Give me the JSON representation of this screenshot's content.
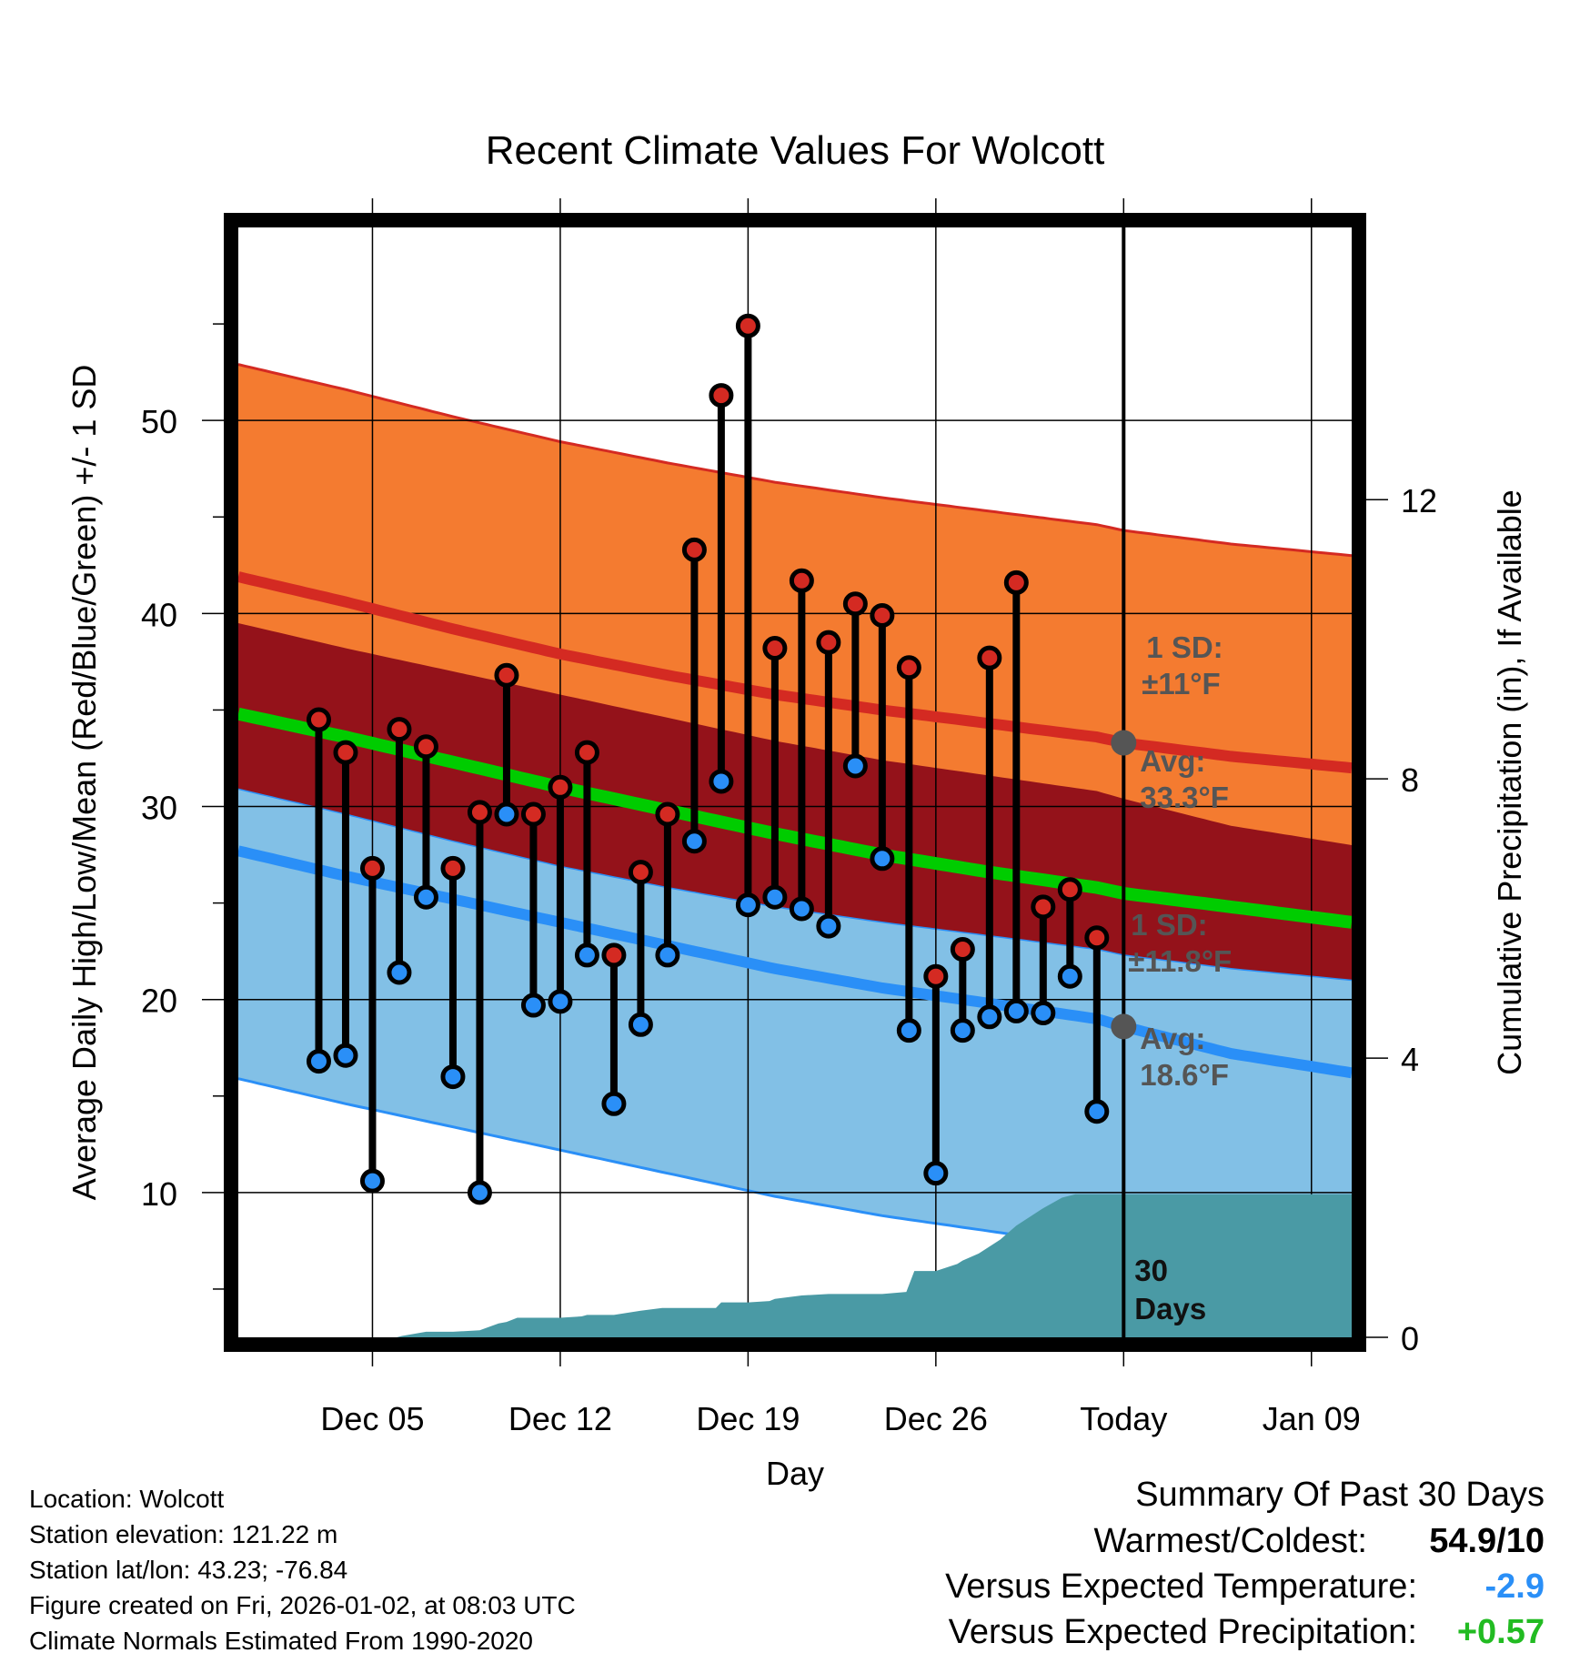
{
  "chart_data": {
    "type": "line",
    "title": "Recent Climate Values For Wolcott",
    "xlabel": "Day",
    "ylabel_left": "Average Daily High/Low/Mean (Red/Blue/Green) +/- 1 SD",
    "ylabel_right": "Cumulative Precipitation (in), If Available",
    "x_range_days": [
      -33,
      8.5
    ],
    "y_left_range": [
      2.5,
      60
    ],
    "y_right_range": [
      0,
      15.9
    ],
    "x_ticks": [
      {
        "day": -28,
        "label": "Dec 05"
      },
      {
        "day": -21,
        "label": "Dec 12"
      },
      {
        "day": -14,
        "label": "Dec 19"
      },
      {
        "day": -7,
        "label": "Dec 26"
      },
      {
        "day": 0,
        "label": "Today"
      },
      {
        "day": 7,
        "label": "Jan 09"
      }
    ],
    "y_left_ticks": [
      {
        "value": 10,
        "label": "10"
      },
      {
        "value": 20,
        "label": "20"
      },
      {
        "value": 30,
        "label": "30"
      },
      {
        "value": 40,
        "label": "40"
      },
      {
        "value": 50,
        "label": "50"
      }
    ],
    "y_left_minor_ticks": [
      5,
      15,
      25,
      35,
      45,
      55
    ],
    "y_right_ticks": [
      {
        "value": 0,
        "label": "0"
      },
      {
        "value": 4,
        "label": "4"
      },
      {
        "value": 8,
        "label": "8"
      },
      {
        "value": 12,
        "label": "12"
      }
    ],
    "normals": {
      "days": [
        -33,
        -29,
        -25,
        -21,
        -17,
        -13,
        -9,
        -5,
        -1,
        0,
        4,
        8.5
      ],
      "high_mean": [
        41.9,
        40.6,
        39.2,
        37.9,
        36.8,
        35.8,
        35.0,
        34.3,
        33.6,
        33.3,
        32.6,
        32.0
      ],
      "high_sd": 11,
      "mean": [
        34.8,
        33.6,
        32.3,
        31.0,
        29.8,
        28.6,
        27.5,
        26.6,
        25.8,
        25.5,
        24.8,
        24.0
      ],
      "low_mean": [
        27.7,
        26.4,
        25.2,
        24.0,
        22.8,
        21.6,
        20.6,
        19.8,
        19.0,
        18.6,
        17.2,
        16.2
      ],
      "low_sd": 11.8
    },
    "observations": {
      "days": [
        -30,
        -29,
        -28,
        -27,
        -26,
        -25,
        -24,
        -23,
        -22,
        -21,
        -20,
        -19,
        -18,
        -17,
        -16,
        -15,
        -14,
        -13,
        -12,
        -11,
        -10,
        -9,
        -8,
        -7,
        -6,
        -5,
        -4,
        -3,
        -2,
        -1
      ],
      "highs": [
        34.5,
        32.8,
        26.8,
        34.0,
        33.1,
        26.8,
        29.7,
        36.8,
        29.6,
        31.0,
        32.8,
        22.3,
        26.6,
        29.6,
        43.3,
        51.3,
        54.9,
        38.2,
        41.7,
        38.5,
        40.5,
        39.9,
        37.2,
        21.2,
        22.6,
        37.7,
        41.6,
        24.8,
        25.7,
        23.2
      ],
      "lows": [
        16.8,
        17.1,
        10.6,
        21.4,
        25.3,
        16.0,
        10,
        29.6,
        19.7,
        19.9,
        22.3,
        14.6,
        18.7,
        22.3,
        28.2,
        31.3,
        24.9,
        25.3,
        24.7,
        23.8,
        32.1,
        27.3,
        18.4,
        11.0,
        18.4,
        19.1,
        19.4,
        19.3,
        21.2,
        14.2
      ]
    },
    "precipitation": {
      "days": [
        -30,
        -29,
        -28,
        -27.1,
        -26.9,
        -26,
        -25,
        -24,
        -23.3,
        -23,
        -22.6,
        -22,
        -21,
        -20.2,
        -20,
        -19,
        -18,
        -17.2,
        -17,
        -16,
        -15.2,
        -15,
        -14,
        -13.2,
        -13,
        -12,
        -11,
        -10,
        -9,
        -8.1,
        -7.8,
        -7,
        -6.2,
        -6,
        -5.4,
        -5,
        -4.6,
        -4,
        -3.4,
        -3,
        -2.3,
        -1.8,
        -1,
        0,
        8.5
      ],
      "cumulative_in": [
        0,
        0,
        0,
        0,
        0.02,
        0.08,
        0.08,
        0.1,
        0.2,
        0.22,
        0.28,
        0.28,
        0.28,
        0.3,
        0.32,
        0.32,
        0.38,
        0.42,
        0.42,
        0.42,
        0.42,
        0.5,
        0.5,
        0.52,
        0.55,
        0.6,
        0.62,
        0.62,
        0.62,
        0.65,
        0.95,
        0.95,
        1.05,
        1.1,
        1.2,
        1.3,
        1.4,
        1.6,
        1.75,
        1.85,
        2.0,
        2.05,
        2.05,
        2.05,
        2.05
      ]
    },
    "annotations": [
      {
        "text_line1": "1 SD:",
        "text_line2": "±11°F",
        "text_line3": "Avg:",
        "text_line4": "33.3°F"
      },
      {
        "text_line1": "1 SD:",
        "text_line2": "±11.8°F",
        "text_line3": "Avg:",
        "text_line4": "18.6°F"
      }
    ],
    "days_label": [
      "30",
      "Days"
    ],
    "colors": {
      "high_band": "#f47b30",
      "high_line": "#d42a22",
      "mid_band": "#94121a",
      "mean_line": "#00cc00",
      "low_band": "#82c0e6",
      "low_line": "#2a8ff7",
      "precip_fill": "#4a9aa5",
      "high_dot": "#d42a22",
      "low_dot": "#2a8ff7",
      "marker_gray": "#555555"
    }
  },
  "info": {
    "location": "Location: Wolcott",
    "elevation": "Station elevation: 121.22 m",
    "latlon": "Station lat/lon: 43.23; -76.84",
    "created": "Figure created on Fri, 2026-01-02, at 08:03 UTC",
    "normals": "Climate Normals Estimated From 1990-2020"
  },
  "summary": {
    "heading": "Summary Of Past 30 Days",
    "warmest_label": "Warmest/Coldest:",
    "warmest_value": "54.9/10",
    "temp_label": "Versus Expected Temperature:",
    "temp_value": "-2.9",
    "temp_color": "#2a8ff7",
    "precip_label": "Versus Expected Precipitation:",
    "precip_value": "+0.57",
    "precip_color": "#22bb22"
  }
}
